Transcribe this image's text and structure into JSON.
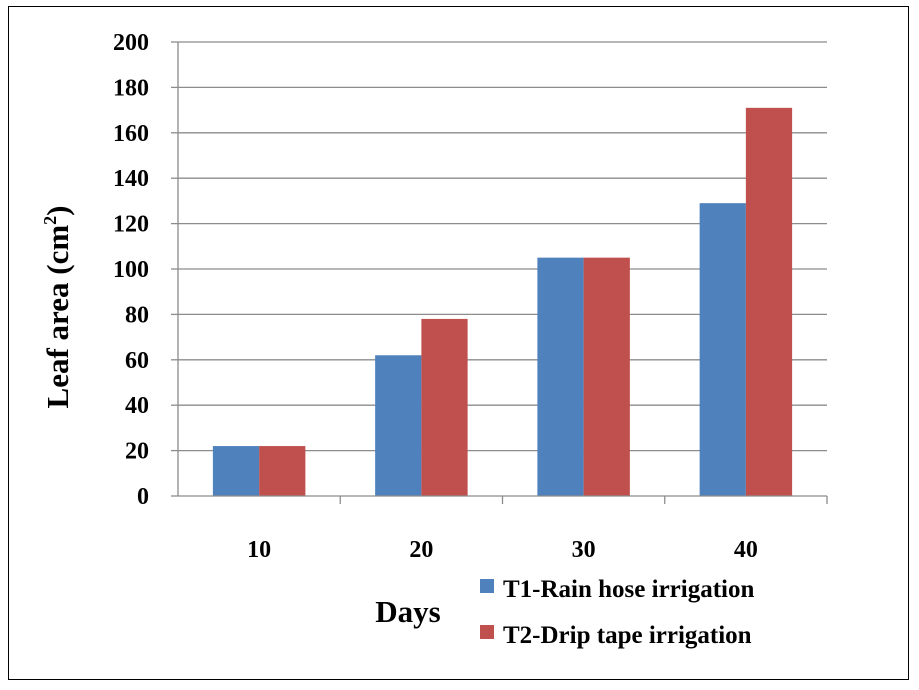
{
  "chart_data": {
    "type": "bar",
    "title": "",
    "xlabel": "Days",
    "ylabel_main": "Leaf area (cm",
    "ylabel_sup": "2",
    "ylabel_close": ")",
    "categories": [
      "10",
      "20",
      "30",
      "40"
    ],
    "series": [
      {
        "name": "T1-Rain hose irrigation",
        "color": "#4f81bd",
        "values": [
          22,
          62,
          105,
          129
        ]
      },
      {
        "name": "T2-Drip tape irrigation",
        "color": "#c0504d",
        "values": [
          22,
          78,
          105,
          171
        ]
      }
    ],
    "ylim": [
      0,
      200
    ],
    "yticks": [
      "0",
      "20",
      "40",
      "60",
      "80",
      "100",
      "120",
      "140",
      "160",
      "180",
      "200"
    ],
    "grid": true,
    "legend_position": "bottom-right"
  }
}
